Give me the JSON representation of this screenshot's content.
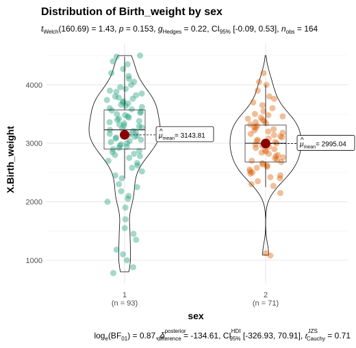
{
  "chart_data": {
    "type": "violin-box-scatter",
    "title": "Distribution of Birth_weight by sex",
    "subtitle": {
      "t_label": "t",
      "t_sub": "Welch",
      "t_stat": "(160.69) = 1.43, ",
      "p_label": "p",
      "p_value": " = 0.153, ",
      "g_label": "g",
      "g_sub": "Hedges",
      "g_value": " = 0.22, CI",
      "ci_sub": "95%",
      "ci_value": " [-0.09, 0.53], ",
      "n_label": "n",
      "n_sub": "obs",
      "n_value": " = 164"
    },
    "caption": {
      "bf_prefix": "log",
      "bf_sub": "e",
      "bf_mid": "(BF",
      "bf_sub2": "01",
      "bf_value": ") = 0.87, ",
      "delta_label": "δ",
      "delta_sup": "posterior",
      "delta_sub": "difference",
      "delta_value": " = -134.61, CI",
      "ci_sup": "HDI",
      "ci_sub": "95%",
      "ci_value": " [-326.93, 70.91], ",
      "r_label": "r",
      "r_sup": "JZS",
      "r_sub": "Cauchy",
      "r_value": " = 0.71"
    },
    "xlabel": "sex",
    "ylabel": "X.Birth_weight",
    "ylim": [
      600,
      4700
    ],
    "yticks": [
      1000,
      2000,
      3000,
      4000
    ],
    "grid": true,
    "colors": {
      "group1": "#1b9e77",
      "group2": "#d95f02",
      "mean": "#8b0000"
    },
    "groups": [
      {
        "name": "1",
        "n_label": "(n = 93)",
        "mean": 3143.81,
        "mean_label_mu": "μ",
        "mean_label_sub": "mean",
        "mean_label_value": "= 3143.81",
        "box": {
          "q1": 2900,
          "median": 3230,
          "q3": 3570,
          "whisker_low": 2400,
          "whisker_high": 4480
        },
        "violin_range": [
          800,
          4500
        ],
        "points": [
          780,
          880,
          1000,
          1100,
          1180,
          1350,
          1450,
          1550,
          1700,
          1900,
          2000,
          2050,
          2100,
          2180,
          2250,
          2300,
          2400,
          2450,
          2520,
          2580,
          2620,
          2660,
          2700,
          2750,
          2780,
          2800,
          2820,
          2850,
          2870,
          2900,
          2920,
          2940,
          2960,
          2980,
          3000,
          3020,
          3040,
          3060,
          3080,
          3100,
          3110,
          3130,
          3150,
          3160,
          3180,
          3200,
          3210,
          3230,
          3250,
          3270,
          3290,
          3300,
          3320,
          3340,
          3360,
          3380,
          3400,
          3420,
          3440,
          3460,
          3480,
          3500,
          3520,
          3540,
          3560,
          3580,
          3600,
          3620,
          3640,
          3660,
          3680,
          3700,
          3720,
          3740,
          3760,
          3780,
          3800,
          3820,
          3850,
          3880,
          3900,
          3930,
          3960,
          4000,
          4050,
          4100,
          4150,
          4200,
          4270,
          4350,
          4400,
          4480,
          4500
        ]
      },
      {
        "name": "2",
        "n_label": "(n = 71)",
        "mean": 2995.04,
        "mean_label_mu": "μ",
        "mean_label_sub": "mean",
        "mean_label_value": "= 2995.04",
        "box": {
          "q1": 2680,
          "median": 3000,
          "q3": 3310,
          "whisker_low": 2250,
          "whisker_high": 4000
        },
        "violin_range": [
          1090,
          4500
        ],
        "points": [
          1080,
          1120,
          2150,
          2270,
          2300,
          2350,
          2400,
          2420,
          2450,
          2480,
          2500,
          2520,
          2550,
          2580,
          2600,
          2620,
          2640,
          2660,
          2680,
          2700,
          2720,
          2740,
          2760,
          2780,
          2800,
          2820,
          2840,
          2860,
          2880,
          2900,
          2920,
          2940,
          2960,
          2980,
          3000,
          3010,
          3020,
          3040,
          3060,
          3080,
          3100,
          3120,
          3140,
          3160,
          3180,
          3200,
          3220,
          3240,
          3260,
          3280,
          3300,
          3320,
          3340,
          3360,
          3380,
          3400,
          3420,
          3440,
          3460,
          3480,
          3500,
          3550,
          3600,
          3650,
          3700,
          3760,
          3800,
          3900,
          4000,
          4050,
          4200
        ]
      }
    ]
  }
}
